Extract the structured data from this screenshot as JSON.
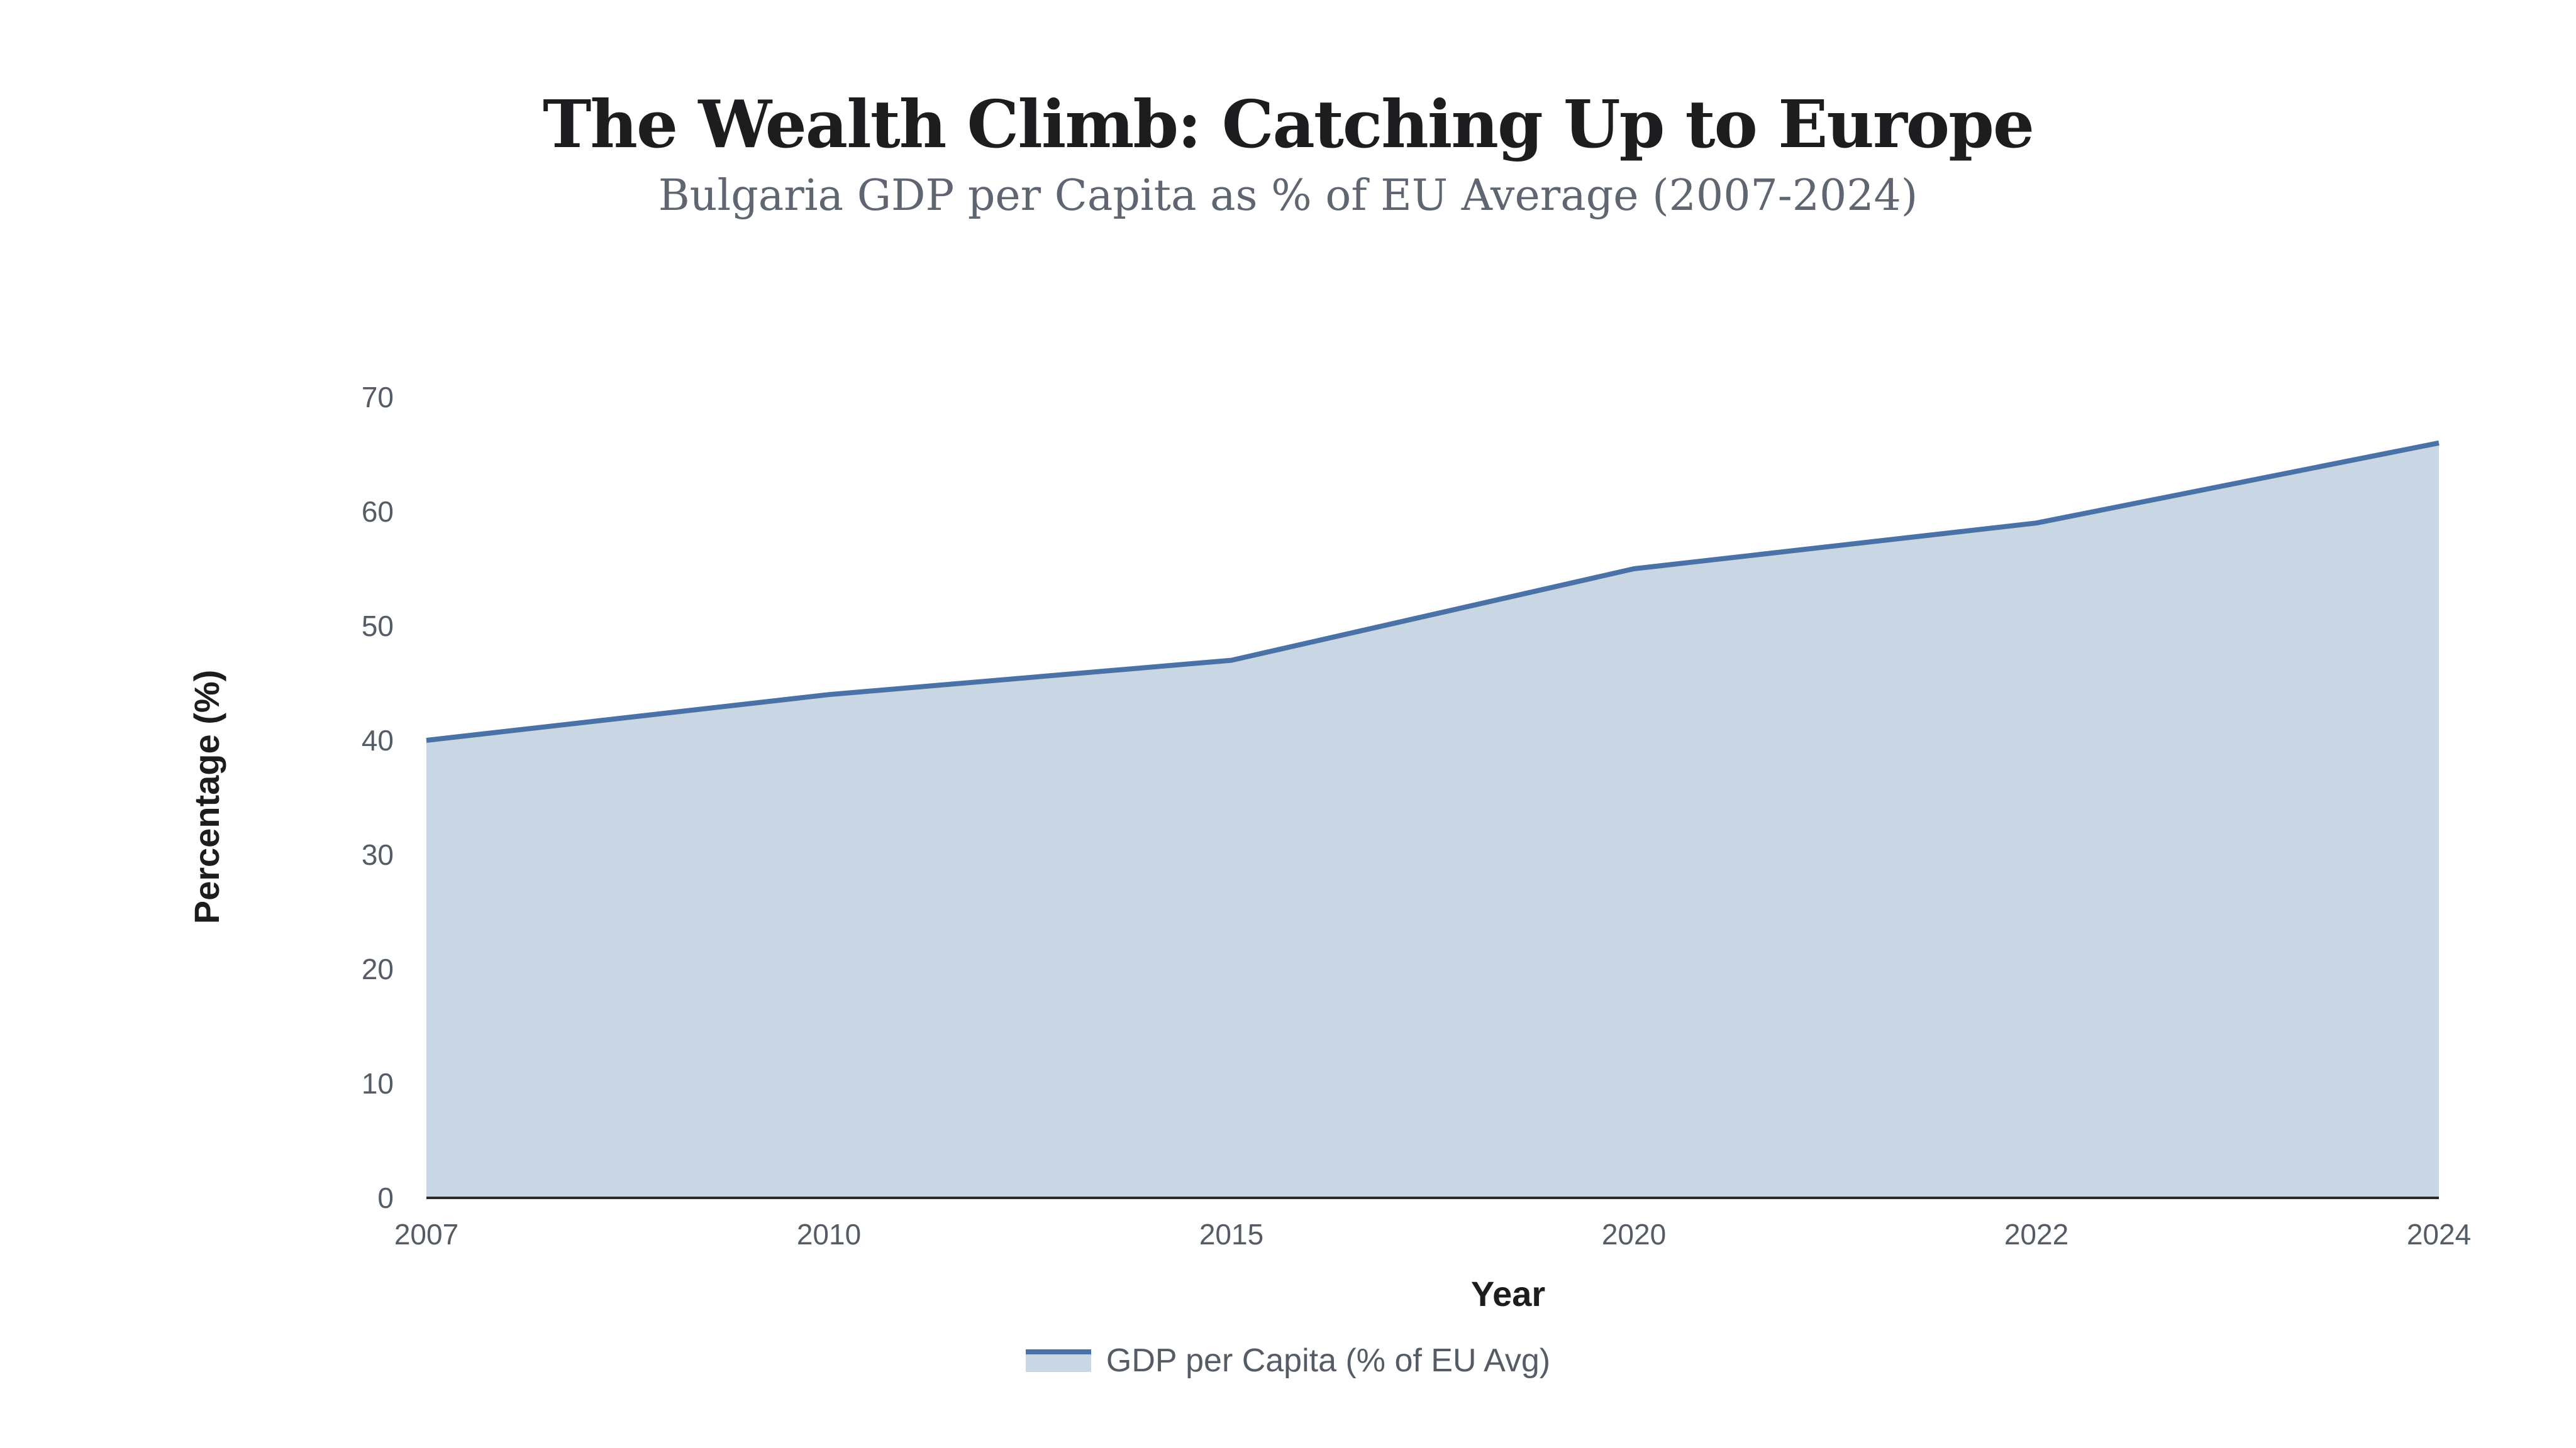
{
  "chart_data": {
    "type": "area",
    "title": "The Wealth Climb: Catching Up to Europe",
    "subtitle": "Bulgaria GDP per Capita as % of EU Average (2007-2024)",
    "xlabel": "Year",
    "ylabel": "Percentage (%)",
    "categories": [
      "2007",
      "2010",
      "2015",
      "2020",
      "2022",
      "2024"
    ],
    "series": [
      {
        "name": "GDP per Capita (% of EU Avg)",
        "values": [
          40,
          44,
          47,
          55,
          59,
          66
        ]
      }
    ],
    "ylim": [
      0,
      70
    ],
    "yticks": [
      0,
      10,
      20,
      30,
      40,
      50,
      60,
      70
    ],
    "grid": false,
    "legend_position": "bottom",
    "colors": {
      "line": "#4a72a6",
      "fill": "#c9d7e5",
      "axis": "#2b2b2b"
    }
  }
}
